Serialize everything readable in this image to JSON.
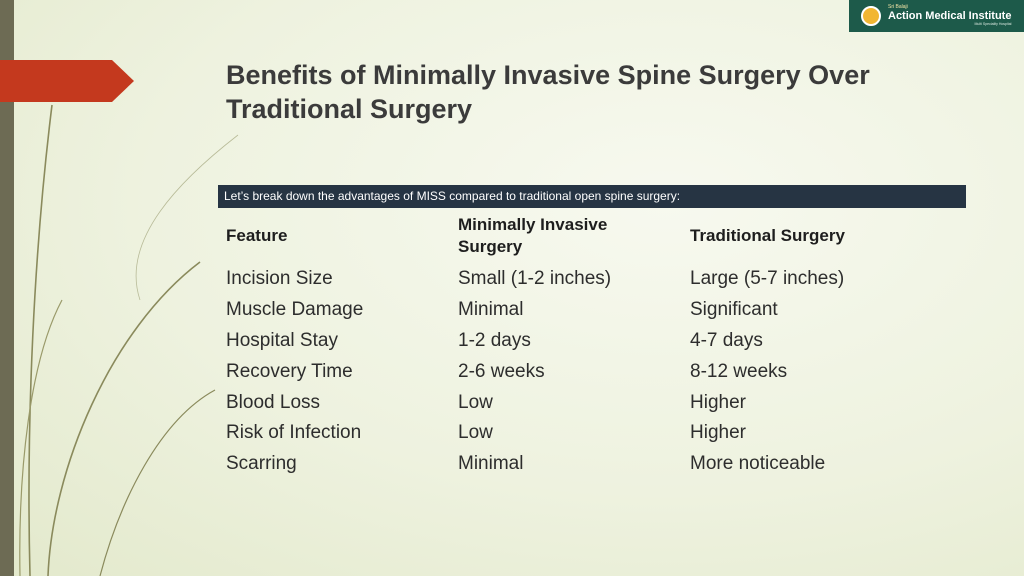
{
  "logo": {
    "small_text": "Sri Balaji",
    "name": "Action Medical Institute",
    "tagline": "Multi Speciality Hospital"
  },
  "title": "Benefits of Minimally Invasive Spine Surgery Over Traditional Surgery",
  "intro": "Let’s break down the advantages of MISS compared to traditional open spine surgery:",
  "table": {
    "headers": [
      "Feature",
      "Minimally Invasive Surgery",
      "Traditional Surgery"
    ],
    "rows": [
      [
        "Incision Size",
        "Small (1-2 inches)",
        "Large (5-7 inches)"
      ],
      [
        "Muscle Damage",
        "Minimal",
        "Significant"
      ],
      [
        "Hospital Stay",
        "1-2 days",
        "4-7 days"
      ],
      [
        "Recovery Time",
        "2-6 weeks",
        "8-12 weeks"
      ],
      [
        "Blood Loss",
        "Low",
        "Higher"
      ],
      [
        "Risk of Infection",
        "Low",
        "Higher"
      ],
      [
        "Scarring",
        "Minimal",
        "More noticeable"
      ]
    ]
  },
  "colors": {
    "accent_arrow": "#c4391e",
    "side_bar": "#6d6b54",
    "banner": "#263443",
    "logo_bg": "#1d5a4a"
  }
}
